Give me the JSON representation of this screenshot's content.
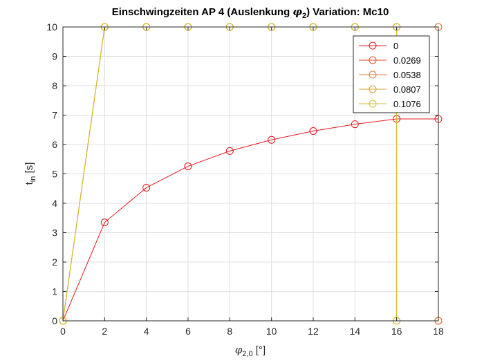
{
  "chart_data": {
    "type": "line",
    "title_prefix": "Einschwingzeiten AP 4 (Auslenkung ",
    "title_symbol": "φ",
    "title_sub": "2",
    "title_suffix": ")  Variation: Mc10",
    "xlabel_symbol": "φ",
    "xlabel_sub": "2,0",
    "xlabel_unit": " [°]",
    "ylabel_main": "t",
    "ylabel_sub": "in",
    "ylabel_unit": " [s]",
    "xlim": [
      0,
      18
    ],
    "ylim": [
      0,
      10
    ],
    "xticks": [
      0,
      2,
      4,
      6,
      8,
      10,
      12,
      14,
      16,
      18
    ],
    "yticks": [
      0,
      1,
      2,
      3,
      4,
      5,
      6,
      7,
      8,
      9,
      10
    ],
    "grid": true,
    "legend_position": "top-right",
    "series": [
      {
        "name": "0",
        "color": "#e6191c",
        "x": [
          0,
          2,
          4,
          6,
          8,
          10,
          12,
          14,
          16,
          18,
          18
        ],
        "y": [
          0,
          3.35,
          4.53,
          5.26,
          5.78,
          6.16,
          6.46,
          6.69,
          6.87,
          6.87,
          0
        ]
      },
      {
        "name": "0.0269",
        "color": "#e34a2a",
        "x": [
          0,
          2,
          4,
          6,
          8,
          10,
          12,
          14,
          16,
          18,
          18
        ],
        "y": [
          0,
          10,
          10,
          10,
          10,
          10,
          10,
          10,
          10,
          10,
          0
        ]
      },
      {
        "name": "0.0538",
        "color": "#e07c38",
        "x": [
          0,
          2,
          4,
          6,
          8,
          10,
          12,
          14,
          16,
          18,
          18
        ],
        "y": [
          0,
          10,
          10,
          10,
          10,
          10,
          10,
          10,
          10,
          10,
          0
        ]
      },
      {
        "name": "0.0807",
        "color": "#d8a233",
        "x": [
          0,
          2,
          4,
          6,
          8,
          10,
          12,
          14,
          16,
          16
        ],
        "y": [
          0,
          10,
          10,
          10,
          10,
          10,
          10,
          10,
          10,
          0
        ]
      },
      {
        "name": "0.1076",
        "color": "#d4bf2a",
        "x": [
          0,
          2,
          4,
          6,
          8,
          10,
          12,
          14,
          16,
          16
        ],
        "y": [
          0,
          10,
          10,
          10,
          10,
          10,
          10,
          10,
          10,
          0
        ]
      }
    ]
  }
}
